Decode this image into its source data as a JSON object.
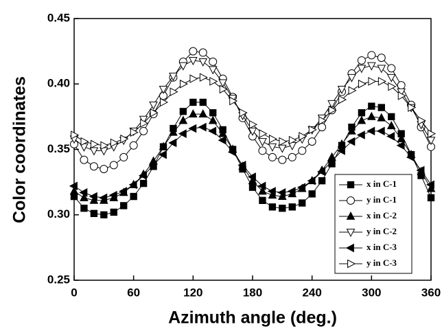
{
  "chart_data": {
    "type": "line",
    "xlabel": "Azimuth angle (deg.)",
    "ylabel": "Color coordinates",
    "x": [
      0,
      10,
      20,
      30,
      40,
      50,
      60,
      70,
      80,
      90,
      100,
      110,
      120,
      130,
      140,
      150,
      160,
      170,
      180,
      190,
      200,
      210,
      220,
      230,
      240,
      250,
      260,
      270,
      280,
      290,
      300,
      310,
      320,
      330,
      340,
      350,
      360
    ],
    "xlim": [
      0,
      360
    ],
    "xticks": [
      0,
      60,
      120,
      180,
      240,
      300,
      360
    ],
    "ylim": [
      0.25,
      0.45
    ],
    "yticks": [
      0.25,
      {
        "value": 0.3,
        "label": "0.30"
      },
      0.35,
      {
        "value": 0.4,
        "label": "0.40"
      },
      0.45
    ],
    "legend": "lower right",
    "series": [
      {
        "name": "x in C-1",
        "color": "#000000",
        "marker": "square",
        "filled": true,
        "values": [
          0.314,
          0.305,
          0.301,
          0.3,
          0.302,
          0.307,
          0.314,
          0.324,
          0.337,
          0.352,
          0.366,
          0.379,
          0.386,
          0.386,
          0.378,
          0.365,
          0.35,
          0.335,
          0.321,
          0.311,
          0.306,
          0.305,
          0.306,
          0.309,
          0.316,
          0.326,
          0.339,
          0.353,
          0.367,
          0.378,
          0.383,
          0.382,
          0.375,
          0.362,
          0.346,
          0.33,
          0.313
        ]
      },
      {
        "name": "y in C-1",
        "color": "#000000",
        "marker": "circle",
        "filled": false,
        "values": [
          0.354,
          0.342,
          0.337,
          0.335,
          0.338,
          0.344,
          0.353,
          0.364,
          0.377,
          0.391,
          0.405,
          0.417,
          0.425,
          0.424,
          0.417,
          0.404,
          0.39,
          0.374,
          0.36,
          0.349,
          0.344,
          0.342,
          0.344,
          0.349,
          0.356,
          0.367,
          0.38,
          0.394,
          0.408,
          0.418,
          0.422,
          0.42,
          0.412,
          0.399,
          0.384,
          0.367,
          0.352
        ]
      },
      {
        "name": "x in C-2",
        "color": "#000000",
        "marker": "triangle-up",
        "filled": true,
        "values": [
          0.318,
          0.313,
          0.311,
          0.311,
          0.313,
          0.317,
          0.323,
          0.331,
          0.341,
          0.352,
          0.363,
          0.372,
          0.377,
          0.377,
          0.372,
          0.362,
          0.35,
          0.337,
          0.326,
          0.318,
          0.315,
          0.314,
          0.316,
          0.32,
          0.326,
          0.334,
          0.344,
          0.354,
          0.364,
          0.372,
          0.375,
          0.374,
          0.368,
          0.358,
          0.346,
          0.333,
          0.32
        ]
      },
      {
        "name": "y in C-2",
        "color": "#000000",
        "marker": "triangle-down",
        "filled": false,
        "values": [
          0.358,
          0.352,
          0.349,
          0.349,
          0.352,
          0.357,
          0.364,
          0.373,
          0.384,
          0.396,
          0.406,
          0.414,
          0.418,
          0.417,
          0.411,
          0.401,
          0.389,
          0.376,
          0.364,
          0.356,
          0.352,
          0.351,
          0.353,
          0.358,
          0.365,
          0.374,
          0.385,
          0.396,
          0.405,
          0.412,
          0.414,
          0.412,
          0.405,
          0.394,
          0.382,
          0.369,
          0.357
        ]
      },
      {
        "name": "x in C-3",
        "color": "#000000",
        "marker": "triangle-left",
        "filled": true,
        "values": [
          0.322,
          0.317,
          0.314,
          0.313,
          0.315,
          0.318,
          0.323,
          0.33,
          0.338,
          0.346,
          0.355,
          0.362,
          0.366,
          0.367,
          0.364,
          0.357,
          0.348,
          0.338,
          0.329,
          0.322,
          0.318,
          0.317,
          0.318,
          0.321,
          0.326,
          0.333,
          0.341,
          0.349,
          0.356,
          0.361,
          0.364,
          0.364,
          0.36,
          0.353,
          0.344,
          0.334,
          0.323
        ]
      },
      {
        "name": "y in C-3",
        "color": "#000000",
        "marker": "triangle-right",
        "filled": false,
        "values": [
          0.361,
          0.356,
          0.354,
          0.353,
          0.355,
          0.358,
          0.363,
          0.37,
          0.378,
          0.386,
          0.394,
          0.4,
          0.404,
          0.405,
          0.402,
          0.396,
          0.387,
          0.378,
          0.369,
          0.362,
          0.358,
          0.356,
          0.357,
          0.36,
          0.365,
          0.372,
          0.38,
          0.388,
          0.395,
          0.4,
          0.402,
          0.402,
          0.398,
          0.391,
          0.382,
          0.372,
          0.362
        ]
      }
    ]
  }
}
